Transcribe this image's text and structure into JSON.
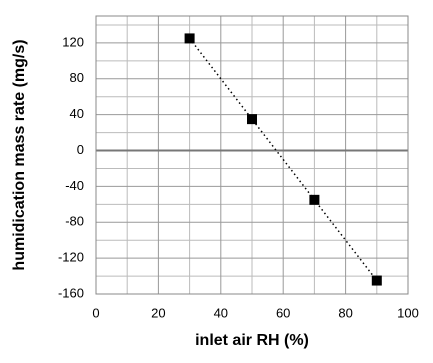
{
  "chart_data": {
    "type": "scatter",
    "line_style": "dotted",
    "x_label": "inlet air RH (%)",
    "y_label": "humidication mass rate (mg/s)",
    "x": [
      30,
      50,
      70,
      90
    ],
    "values": [
      125,
      35,
      -55,
      -145
    ],
    "color": "#000000",
    "xlim": [
      0,
      100
    ],
    "xticks": [
      0,
      20,
      40,
      60,
      80,
      100
    ],
    "ylim": [
      -160,
      150
    ],
    "yticks": [
      -160,
      -120,
      -80,
      -40,
      0,
      40,
      80,
      120
    ],
    "grid": true
  }
}
